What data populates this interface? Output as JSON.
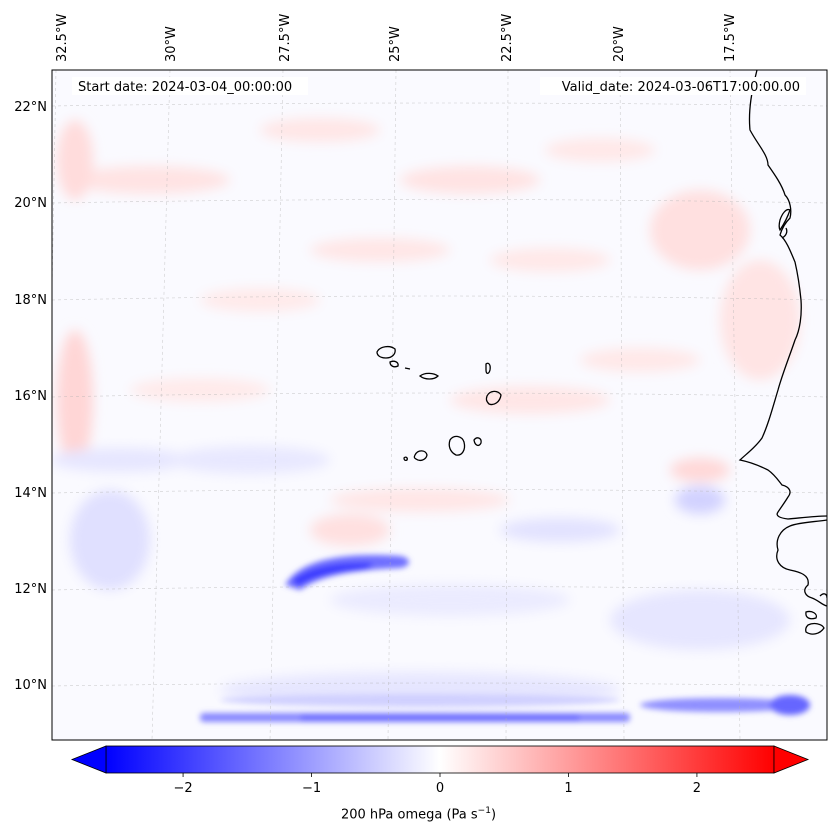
{
  "map": {
    "start_date": "Start date: 2024-03-04_00:00:00",
    "valid_date": "Valid_date: 2024-03-06T17:00:00.00",
    "field": "200 hPa omega",
    "units": "Pa s⁻¹",
    "longitude_labels": [
      "32.5°W",
      "30°W",
      "27.5°W",
      "25°W",
      "22.5°W",
      "20°W",
      "17.5°W"
    ],
    "latitude_labels": [
      "22°N",
      "20°N",
      "18°N",
      "16°N",
      "14°N",
      "12°N",
      "10°N"
    ],
    "extent": {
      "lon_min": -32.7,
      "lon_max": -15.8,
      "lat_min": 8.9,
      "lat_max": 22.7
    }
  },
  "colorbar": {
    "ticks": [
      "−2",
      "−1",
      "0",
      "1",
      "2"
    ],
    "tick_values": [
      -2,
      -1,
      0,
      1,
      2
    ],
    "range": [
      -2.6,
      2.6
    ],
    "label": "200 hPa omega (Pa s$^{-1}$)",
    "label_parts": {
      "base": "200 hPa omega (Pa s",
      "sup": "−1",
      "close": ")"
    },
    "colormap": "bwr",
    "low_color": "#0000ff",
    "mid_color": "#ffffff",
    "high_color": "#ff0000"
  }
}
